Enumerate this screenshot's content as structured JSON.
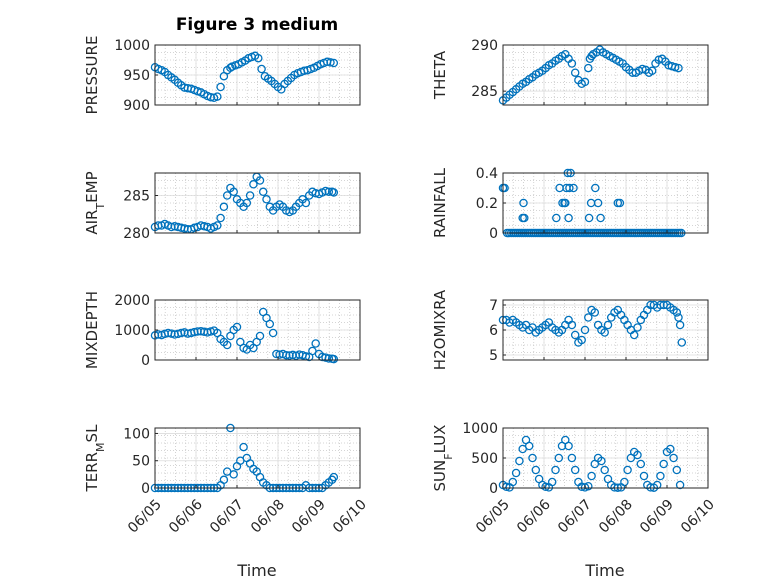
{
  "title": "Figure 3 medium",
  "xlabel": "Time",
  "colors": {
    "marker": "#0072BD",
    "axis": "#262626",
    "grid": "#c8c8c8"
  },
  "chart_data": [
    {
      "type": "scatter",
      "ylabel": "PRESSURE",
      "xlim": [
        0,
        5
      ],
      "ylim": [
        900,
        1000
      ],
      "yticks": [
        "1000",
        "950",
        "900"
      ],
      "ytick_values": [
        1000,
        950,
        900
      ],
      "x": [
        0,
        0.08,
        0.16,
        0.24,
        0.32,
        0.4,
        0.48,
        0.56,
        0.64,
        0.72,
        0.8,
        0.88,
        0.96,
        1.04,
        1.12,
        1.2,
        1.28,
        1.36,
        1.44,
        1.52,
        1.6,
        1.68,
        1.76,
        1.84,
        1.88,
        1.96,
        2.04,
        2.12,
        2.2,
        2.28,
        2.36,
        2.44,
        2.52,
        2.6,
        2.68,
        2.76,
        2.84,
        2.92,
        3.0,
        3.08,
        3.16,
        3.24,
        3.32,
        3.4,
        3.48,
        3.56,
        3.64,
        3.72,
        3.8,
        3.88,
        3.96,
        4.04,
        4.12,
        4.2,
        4.28,
        4.36
      ],
      "y": [
        963,
        960,
        958,
        955,
        950,
        946,
        942,
        937,
        933,
        929,
        928,
        927,
        925,
        923,
        921,
        918,
        915,
        913,
        912,
        914,
        930,
        948,
        958,
        962,
        964,
        966,
        968,
        971,
        974,
        978,
        980,
        982,
        978,
        960,
        948,
        944,
        940,
        935,
        930,
        926,
        935,
        940,
        945,
        950,
        953,
        955,
        957,
        958,
        960,
        962,
        965,
        968,
        970,
        972,
        971,
        970
      ]
    },
    {
      "type": "scatter",
      "ylabel": "THETA",
      "xlim": [
        0,
        5
      ],
      "ylim": [
        283.5,
        290
      ],
      "yticks": [
        "290",
        "285"
      ],
      "ytick_values": [
        290,
        285
      ],
      "x": [
        0,
        0.08,
        0.16,
        0.24,
        0.32,
        0.4,
        0.48,
        0.56,
        0.64,
        0.72,
        0.8,
        0.88,
        0.96,
        1.04,
        1.12,
        1.2,
        1.28,
        1.36,
        1.44,
        1.52,
        1.6,
        1.68,
        1.76,
        1.84,
        1.92,
        2.0,
        2.08,
        2.12,
        2.16,
        2.2,
        2.28,
        2.36,
        2.44,
        2.52,
        2.6,
        2.68,
        2.76,
        2.84,
        2.92,
        3.0,
        3.08,
        3.16,
        3.24,
        3.32,
        3.4,
        3.48,
        3.56,
        3.64,
        3.72,
        3.8,
        3.88,
        3.96,
        4.04,
        4.12,
        4.2,
        4.28
      ],
      "y": [
        284.0,
        284.3,
        284.6,
        284.9,
        285.2,
        285.5,
        285.8,
        286.0,
        286.3,
        286.5,
        286.8,
        287.0,
        287.2,
        287.5,
        287.8,
        288.0,
        288.3,
        288.5,
        288.8,
        289.0,
        288.5,
        288.0,
        287.0,
        286.2,
        285.8,
        286.0,
        287.5,
        288.5,
        288.8,
        289.0,
        289.2,
        289.5,
        289.2,
        289.0,
        288.8,
        288.6,
        288.4,
        288.2,
        288.0,
        287.6,
        287.3,
        287.0,
        287.0,
        287.2,
        287.4,
        287.3,
        287.0,
        287.2,
        288.0,
        288.4,
        288.5,
        288.2,
        287.8,
        287.7,
        287.6,
        287.5
      ]
    },
    {
      "type": "scatter",
      "ylabel": "AIR_TEMP",
      "xlim": [
        0,
        5
      ],
      "ylim": [
        280,
        288
      ],
      "yticks": [
        "285",
        "280"
      ],
      "ytick_values": [
        285,
        280
      ],
      "x": [
        0,
        0.08,
        0.16,
        0.24,
        0.32,
        0.4,
        0.48,
        0.56,
        0.64,
        0.72,
        0.8,
        0.88,
        0.96,
        1.04,
        1.12,
        1.2,
        1.28,
        1.36,
        1.44,
        1.52,
        1.6,
        1.68,
        1.76,
        1.84,
        1.92,
        2.0,
        2.08,
        2.16,
        2.24,
        2.32,
        2.4,
        2.48,
        2.56,
        2.64,
        2.72,
        2.8,
        2.88,
        2.96,
        3.04,
        3.12,
        3.2,
        3.28,
        3.36,
        3.44,
        3.52,
        3.6,
        3.68,
        3.76,
        3.84,
        3.92,
        4.0,
        4.08,
        4.16,
        4.24,
        4.32,
        4.36
      ],
      "y": [
        280.8,
        281.0,
        281.0,
        281.2,
        281.0,
        280.8,
        280.9,
        280.8,
        280.7,
        280.6,
        280.5,
        280.5,
        280.7,
        280.8,
        281.0,
        280.9,
        280.8,
        280.6,
        280.8,
        281.0,
        282.0,
        283.5,
        285.0,
        286.0,
        285.5,
        284.5,
        284.0,
        283.5,
        284.0,
        285.0,
        286.5,
        287.5,
        287.0,
        285.5,
        284.5,
        283.5,
        283.0,
        283.5,
        283.8,
        283.5,
        283.0,
        282.8,
        283.0,
        283.5,
        284.0,
        284.5,
        284.0,
        285.0,
        285.5,
        285.3,
        285.2,
        285.4,
        285.6,
        285.5,
        285.5,
        285.4
      ]
    },
    {
      "type": "scatter",
      "ylabel": "RAINFALL",
      "xlim": [
        0,
        5
      ],
      "ylim": [
        0,
        0.4
      ],
      "yticks": [
        "0.4",
        "0.2",
        "0"
      ],
      "ytick_values": [
        0.4,
        0.2,
        0
      ],
      "x": [
        0,
        0.04,
        0.1,
        0.15,
        0.2,
        0.25,
        0.3,
        0.35,
        0.4,
        0.45,
        0.5,
        0.55,
        0.6,
        0.65,
        0.7,
        0.75,
        0.8,
        0.85,
        0.9,
        0.95,
        1.0,
        1.05,
        1.1,
        1.15,
        1.2,
        1.25,
        1.3,
        1.35,
        1.4,
        1.45,
        1.5,
        1.55,
        1.6,
        1.65,
        1.7,
        1.75,
        1.8,
        1.85,
        1.9,
        1.95,
        2.0,
        2.05,
        2.1,
        2.15,
        2.2,
        2.25,
        2.3,
        2.35,
        2.4,
        2.45,
        2.5,
        2.55,
        2.6,
        2.65,
        2.7,
        2.75,
        2.8,
        2.85,
        2.9,
        2.95,
        3.0,
        3.05,
        3.1,
        3.15,
        3.2,
        3.25,
        3.3,
        3.35,
        3.4,
        3.45,
        3.5,
        3.55,
        3.6,
        3.65,
        3.7,
        3.75,
        3.8,
        3.85,
        3.9,
        3.95,
        4.0,
        4.05,
        4.1,
        4.15,
        4.2,
        4.25,
        4.3,
        4.35,
        0.48,
        0.5,
        0.52,
        1.3,
        1.38,
        1.45,
        1.52,
        1.58,
        1.65,
        1.72,
        2.1,
        2.15,
        2.25,
        2.32,
        2.38,
        2.8,
        2.85,
        1.5,
        1.6,
        1.55,
        1.62
      ],
      "y": [
        0.3,
        0.3,
        0.0,
        0.0,
        0.0,
        0.0,
        0.0,
        0.0,
        0.0,
        0.0,
        0.0,
        0.0,
        0.0,
        0.0,
        0.0,
        0.0,
        0.0,
        0.0,
        0.0,
        0.0,
        0.0,
        0.0,
        0.0,
        0.0,
        0.0,
        0.0,
        0.0,
        0.0,
        0.0,
        0.0,
        0.0,
        0.0,
        0.0,
        0.0,
        0.0,
        0.0,
        0.0,
        0.0,
        0.0,
        0.0,
        0.0,
        0.0,
        0.0,
        0.0,
        0.0,
        0.0,
        0.0,
        0.0,
        0.0,
        0.0,
        0.0,
        0.0,
        0.0,
        0.0,
        0.0,
        0.0,
        0.0,
        0.0,
        0.0,
        0.0,
        0.0,
        0.0,
        0.0,
        0.0,
        0.0,
        0.0,
        0.0,
        0.0,
        0.0,
        0.0,
        0.0,
        0.0,
        0.0,
        0.0,
        0.0,
        0.0,
        0.0,
        0.0,
        0.0,
        0.0,
        0.0,
        0.0,
        0.0,
        0.0,
        0.0,
        0.0,
        0.0,
        0.0,
        0.1,
        0.2,
        0.1,
        0.1,
        0.3,
        0.2,
        0.2,
        0.4,
        0.4,
        0.3,
        0.1,
        0.2,
        0.3,
        0.2,
        0.1,
        0.2,
        0.2,
        0.2,
        0.1,
        0.3,
        0.3
      ]
    },
    {
      "type": "scatter",
      "ylabel": "MIXDEPTH",
      "xlim": [
        0,
        5
      ],
      "ylim": [
        0,
        2000
      ],
      "yticks": [
        "2000",
        "1000",
        "0"
      ],
      "ytick_values": [
        2000,
        1000,
        0
      ],
      "x": [
        0,
        0.08,
        0.16,
        0.24,
        0.32,
        0.4,
        0.48,
        0.56,
        0.64,
        0.72,
        0.8,
        0.88,
        0.96,
        1.04,
        1.12,
        1.2,
        1.28,
        1.36,
        1.44,
        1.52,
        1.6,
        1.68,
        1.76,
        1.84,
        1.92,
        2.0,
        2.08,
        2.16,
        2.24,
        2.32,
        2.4,
        2.48,
        2.56,
        2.64,
        2.72,
        2.8,
        2.88,
        2.96,
        3.04,
        3.12,
        3.2,
        3.28,
        3.36,
        3.44,
        3.52,
        3.6,
        3.68,
        3.76,
        3.84,
        3.92,
        4.0,
        4.08,
        4.16,
        4.24,
        4.32,
        4.36
      ],
      "y": [
        820,
        850,
        830,
        870,
        900,
        880,
        850,
        870,
        900,
        920,
        880,
        900,
        930,
        950,
        960,
        940,
        920,
        950,
        980,
        900,
        700,
        600,
        500,
        800,
        1000,
        1100,
        600,
        400,
        350,
        500,
        400,
        600,
        800,
        1600,
        1400,
        1200,
        900,
        200,
        180,
        200,
        160,
        150,
        170,
        140,
        180,
        160,
        120,
        100,
        300,
        550,
        200,
        100,
        80,
        50,
        40,
        30
      ]
    },
    {
      "type": "scatter",
      "ylabel": "H2OMIXRA",
      "xlim": [
        0,
        5
      ],
      "ylim": [
        4.8,
        7.2
      ],
      "yticks": [
        "7",
        "6",
        "5"
      ],
      "ytick_values": [
        7,
        6,
        5
      ],
      "x": [
        0,
        0.08,
        0.16,
        0.24,
        0.32,
        0.4,
        0.48,
        0.56,
        0.64,
        0.72,
        0.8,
        0.88,
        0.96,
        1.04,
        1.12,
        1.2,
        1.28,
        1.36,
        1.44,
        1.52,
        1.6,
        1.68,
        1.76,
        1.84,
        1.92,
        2.0,
        2.08,
        2.16,
        2.24,
        2.32,
        2.4,
        2.48,
        2.56,
        2.64,
        2.72,
        2.8,
        2.88,
        2.96,
        3.04,
        3.12,
        3.2,
        3.28,
        3.36,
        3.44,
        3.52,
        3.6,
        3.68,
        3.76,
        3.84,
        3.92,
        4.0,
        4.08,
        4.16,
        4.24,
        4.28,
        4.32,
        4.36
      ],
      "y": [
        6.4,
        6.4,
        6.3,
        6.4,
        6.3,
        6.2,
        6.1,
        6.2,
        6.0,
        6.1,
        5.9,
        6.0,
        6.1,
        6.2,
        6.3,
        6.1,
        6.0,
        5.9,
        6.0,
        6.2,
        6.4,
        6.2,
        5.8,
        5.5,
        5.6,
        6.0,
        6.5,
        6.8,
        6.7,
        6.2,
        6.0,
        5.9,
        6.2,
        6.5,
        6.7,
        6.8,
        6.6,
        6.4,
        6.2,
        6.0,
        5.8,
        6.1,
        6.4,
        6.6,
        6.8,
        7.0,
        7.0,
        6.9,
        7.0,
        7.0,
        7.0,
        6.9,
        6.8,
        6.7,
        6.5,
        6.2,
        5.5
      ]
    },
    {
      "type": "scatter",
      "ylabel": "TERR_MSL",
      "xlim": [
        0,
        5
      ],
      "ylim": [
        0,
        110
      ],
      "yticks": [
        "100",
        "50",
        "0"
      ],
      "ytick_values": [
        100,
        50,
        0
      ],
      "x": [
        0,
        0.08,
        0.16,
        0.24,
        0.32,
        0.4,
        0.48,
        0.56,
        0.64,
        0.72,
        0.8,
        0.88,
        0.96,
        1.04,
        1.12,
        1.2,
        1.28,
        1.36,
        1.44,
        1.52,
        1.6,
        1.68,
        1.76,
        1.84,
        1.92,
        2.0,
        2.08,
        2.16,
        2.24,
        2.32,
        2.4,
        2.48,
        2.56,
        2.64,
        2.72,
        2.8,
        2.88,
        2.96,
        3.04,
        3.12,
        3.2,
        3.28,
        3.36,
        3.44,
        3.52,
        3.6,
        3.68,
        3.76,
        3.84,
        3.92,
        4.0,
        4.08,
        4.16,
        4.24,
        4.32,
        4.36
      ],
      "y": [
        0,
        0,
        0,
        0,
        0,
        0,
        0,
        0,
        0,
        0,
        0,
        0,
        0,
        0,
        0,
        0,
        0,
        0,
        0,
        0,
        5,
        15,
        30,
        110,
        25,
        40,
        50,
        75,
        55,
        45,
        35,
        30,
        20,
        10,
        5,
        0,
        0,
        0,
        0,
        0,
        0,
        0,
        0,
        0,
        0,
        0,
        5,
        0,
        0,
        0,
        0,
        0,
        5,
        10,
        15,
        20
      ]
    },
    {
      "type": "scatter",
      "ylabel": "SUN_FLUX",
      "xlim": [
        0,
        5
      ],
      "ylim": [
        0,
        1000
      ],
      "yticks": [
        "1000",
        "500",
        "0"
      ],
      "ytick_values": [
        1000,
        500,
        0
      ],
      "x": [
        0,
        0.08,
        0.16,
        0.24,
        0.32,
        0.4,
        0.48,
        0.56,
        0.64,
        0.72,
        0.8,
        0.88,
        0.96,
        1.04,
        1.12,
        1.2,
        1.28,
        1.36,
        1.44,
        1.52,
        1.6,
        1.68,
        1.76,
        1.84,
        1.92,
        2.0,
        2.08,
        2.16,
        2.24,
        2.32,
        2.4,
        2.48,
        2.56,
        2.64,
        2.72,
        2.8,
        2.88,
        2.96,
        3.04,
        3.12,
        3.2,
        3.28,
        3.36,
        3.44,
        3.52,
        3.6,
        3.68,
        3.76,
        3.84,
        3.92,
        4.0,
        4.08,
        4.16,
        4.24,
        4.32
      ],
      "y": [
        50,
        20,
        10,
        100,
        250,
        450,
        650,
        800,
        700,
        500,
        300,
        150,
        50,
        20,
        10,
        100,
        300,
        500,
        700,
        800,
        700,
        500,
        300,
        100,
        20,
        10,
        30,
        200,
        400,
        500,
        450,
        300,
        150,
        50,
        10,
        5,
        10,
        100,
        300,
        500,
        600,
        550,
        400,
        200,
        50,
        10,
        5,
        50,
        200,
        400,
        600,
        650,
        500,
        300,
        50
      ]
    }
  ],
  "xticks": [
    "06/05",
    "06/06",
    "06/07",
    "06/08",
    "06/09",
    "06/10"
  ]
}
